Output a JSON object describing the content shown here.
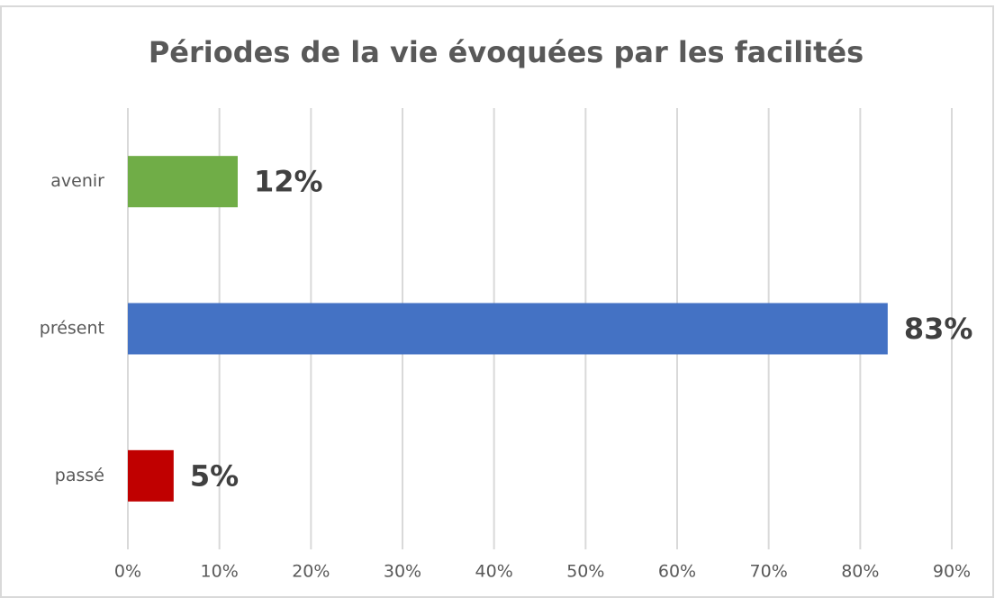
{
  "chart_data": {
    "type": "bar",
    "orientation": "horizontal",
    "title": "Périodes de la vie évoquées par les facilités",
    "categories": [
      "avenir",
      "présent",
      "passé"
    ],
    "values": [
      12,
      83,
      5
    ],
    "value_labels": [
      "12%",
      "83%",
      "5%"
    ],
    "colors": [
      "#70ad47",
      "#4472c4",
      "#c00000"
    ],
    "xlim": [
      0,
      90
    ],
    "xticks": [
      {
        "value": 0,
        "label": "0%"
      },
      {
        "value": 10,
        "label": "10%"
      },
      {
        "value": 20,
        "label": "20%"
      },
      {
        "value": 30,
        "label": "30%"
      },
      {
        "value": 40,
        "label": "40%"
      },
      {
        "value": 50,
        "label": "50%"
      },
      {
        "value": 60,
        "label": "60%"
      },
      {
        "value": 70,
        "label": "70%"
      },
      {
        "value": 80,
        "label": "80%"
      },
      {
        "value": 90,
        "label": "90%"
      }
    ],
    "grid": true
  }
}
